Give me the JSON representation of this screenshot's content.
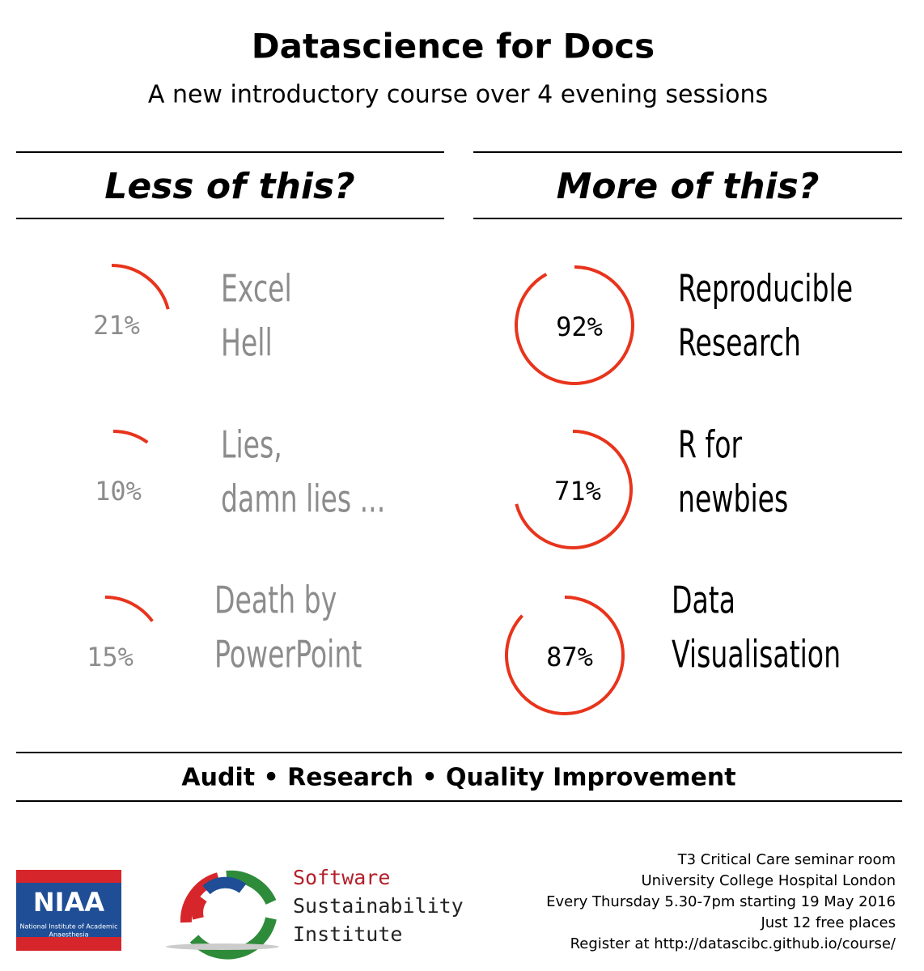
{
  "header": {
    "title": "Datascience for Docs",
    "subtitle": "A new introductory course over 4 evening sessions"
  },
  "columns": [
    {
      "heading": "Less of this?",
      "items": [
        {
          "lines": [
            "Excel",
            "Hell"
          ],
          "value": 21,
          "value_label": "21%"
        },
        {
          "lines": [
            "Lies,",
            "damn lies ..."
          ],
          "value": 10,
          "value_label": "10%"
        },
        {
          "lines": [
            "Death by",
            "PowerPoint"
          ],
          "value": 15,
          "value_label": "15%"
        }
      ]
    },
    {
      "heading": "More of this?",
      "items": [
        {
          "lines": [
            "Reproducible",
            "Research"
          ],
          "value": 92,
          "value_label": "92%"
        },
        {
          "lines": [
            "R for",
            "newbies"
          ],
          "value": 71,
          "value_label": "71%"
        },
        {
          "lines": [
            "Data",
            "Visualisation"
          ],
          "value": 87,
          "value_label": "87%"
        }
      ]
    }
  ],
  "tagline": "Audit • Research • Quality Improvement",
  "logos": {
    "niaa": {
      "abbr": "NIAA",
      "lines": [
        "National Institute of Academic",
        "Anaesthesia"
      ]
    },
    "ssi": {
      "lines": [
        "Software",
        "Sustainability",
        "Institute"
      ]
    }
  },
  "footer": {
    "lines": [
      "T3 Critical Care seminar room",
      "University College Hospital London",
      "Every Thursday 5.30-7pm starting 19 May 2016",
      "Just 12 free places",
      "Register at http://datascibc.github.io/course/"
    ]
  }
}
